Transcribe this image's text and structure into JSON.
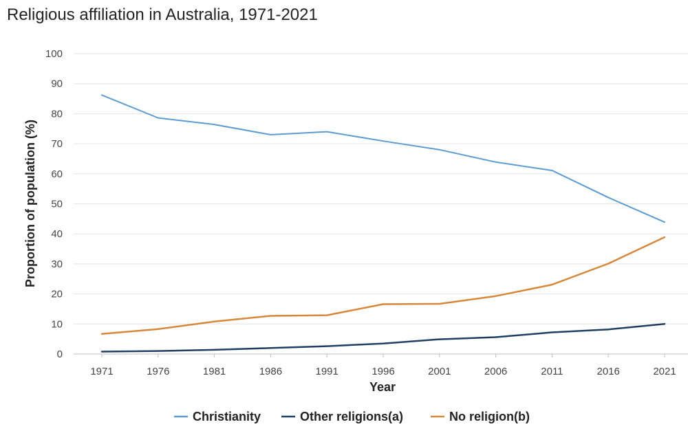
{
  "chart_data": {
    "type": "line",
    "title": "Religious affiliation in Australia, 1971-2021",
    "xlabel": "Year",
    "ylabel": "Proportion of population (%)",
    "x": [
      1971,
      1976,
      1981,
      1986,
      1991,
      1996,
      2001,
      2006,
      2011,
      2016,
      2021
    ],
    "x_tick_labels": [
      "1971",
      "1976",
      "1981",
      "1986",
      "1991",
      "1996",
      "2001",
      "2006",
      "2011",
      "2016",
      "2021"
    ],
    "ylim": [
      0,
      100
    ],
    "y_ticks": [
      0,
      10,
      20,
      30,
      40,
      50,
      60,
      70,
      80,
      90,
      100
    ],
    "y_tick_labels": [
      "0",
      "10",
      "20",
      "30",
      "40",
      "50",
      "60",
      "70",
      "80",
      "90",
      "100"
    ],
    "grid": true,
    "legend_position": "bottom-center",
    "series": [
      {
        "name": "Christianity",
        "color": "#5b9bd0",
        "values": [
          86.2,
          78.6,
          76.4,
          73.0,
          74.0,
          70.9,
          68.0,
          63.9,
          61.1,
          52.1,
          43.9
        ]
      },
      {
        "name": "Other religions(a)",
        "color": "#1f3e64",
        "values": [
          0.8,
          1.0,
          1.4,
          2.0,
          2.6,
          3.5,
          4.9,
          5.6,
          7.2,
          8.2,
          10.0
        ]
      },
      {
        "name": "No religion(b)",
        "color": "#d6873a",
        "values": [
          6.7,
          8.3,
          10.8,
          12.7,
          12.9,
          16.6,
          16.7,
          19.3,
          23.1,
          30.1,
          38.9
        ]
      }
    ]
  }
}
